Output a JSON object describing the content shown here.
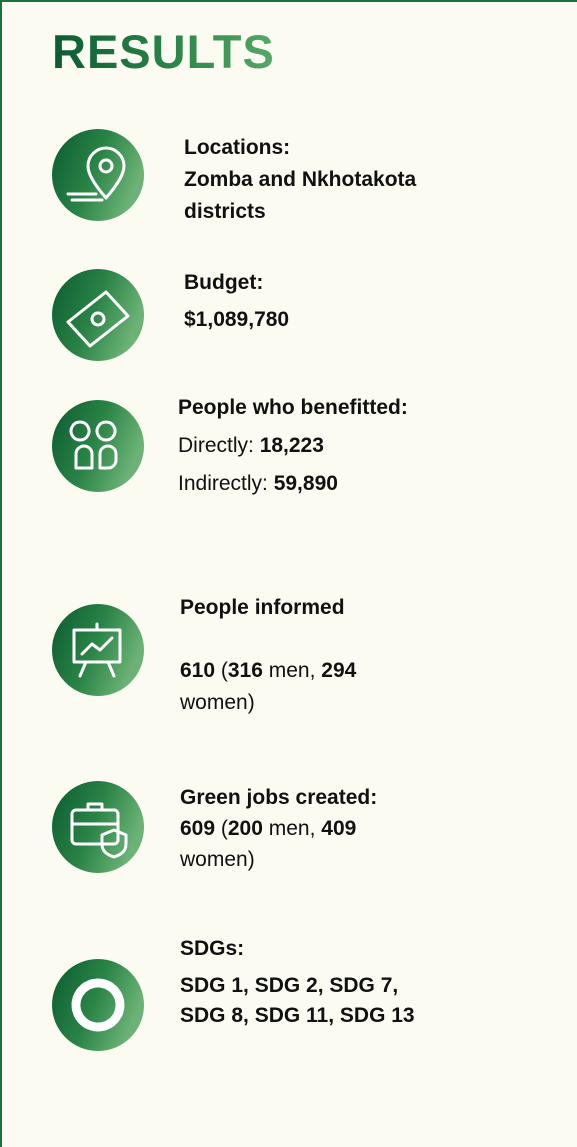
{
  "title": "RESULTS",
  "items": [
    {
      "lines": [
        [
          {
            "text": "Locations:",
            "bold": true
          }
        ],
        [
          {
            "text": "Zomba and Nkhotakota",
            "bold": true
          }
        ],
        [
          {
            "text": "districts",
            "bold": true
          }
        ]
      ]
    },
    {
      "lines": [
        [
          {
            "text": "Budget:",
            "bold": true
          }
        ],
        [
          {
            "text": "$1,089,780",
            "bold": true
          }
        ]
      ]
    },
    {
      "lines": [
        [
          {
            "text": "People who benefitted:",
            "bold": true
          }
        ],
        [
          {
            "text": "Directly: ",
            "bold": false
          },
          {
            "text": "18,223",
            "bold": true
          }
        ],
        [
          {
            "text": "Indirectly: ",
            "bold": false
          },
          {
            "text": "59,890",
            "bold": true
          }
        ]
      ]
    },
    {
      "lines": [
        [
          {
            "text": "People informed",
            "bold": true
          }
        ],
        [
          {
            "text": "610",
            "bold": true
          },
          {
            "text": " (",
            "bold": false
          },
          {
            "text": "316",
            "bold": true
          },
          {
            "text": " men, ",
            "bold": false
          },
          {
            "text": "294",
            "bold": true
          }
        ],
        [
          {
            "text": "women)",
            "bold": false
          }
        ]
      ]
    },
    {
      "lines": [
        [
          {
            "text": "Green jobs created:",
            "bold": true
          }
        ],
        [
          {
            "text": "609",
            "bold": true
          },
          {
            "text": " (",
            "bold": false
          },
          {
            "text": "200",
            "bold": true
          },
          {
            "text": " men, ",
            "bold": false
          },
          {
            "text": "409",
            "bold": true
          }
        ],
        [
          {
            "text": "women)",
            "bold": false
          }
        ]
      ]
    },
    {
      "lines": [
        [
          {
            "text": "SDGs:",
            "bold": true
          }
        ],
        [
          {
            "text": "SDG 1, SDG 2, SDG 7,",
            "bold": true
          }
        ],
        [
          {
            "text": "SDG 8, SDG 11, SDG 13",
            "bold": true
          }
        ]
      ]
    }
  ]
}
